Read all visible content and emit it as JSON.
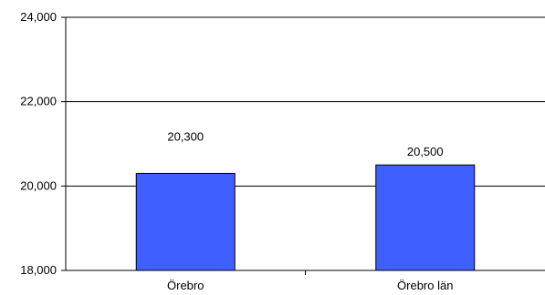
{
  "chart_data": {
    "type": "bar",
    "categories": [
      "Örebro",
      "Örebro län"
    ],
    "values": [
      20300,
      20500
    ],
    "data_labels": [
      "20,300",
      "20,500"
    ],
    "ylim": [
      18000,
      24000
    ],
    "yticks": [
      18000,
      20000,
      22000,
      24000
    ],
    "ytick_labels": [
      "18,000",
      "20,000",
      "22,000",
      "24,000"
    ],
    "title": "",
    "xlabel": "",
    "ylabel": "",
    "grid": true,
    "legend": "none",
    "bar_color": "#3f5fff",
    "bar_edge_color": "#000000",
    "gridline_color": "#000000"
  }
}
